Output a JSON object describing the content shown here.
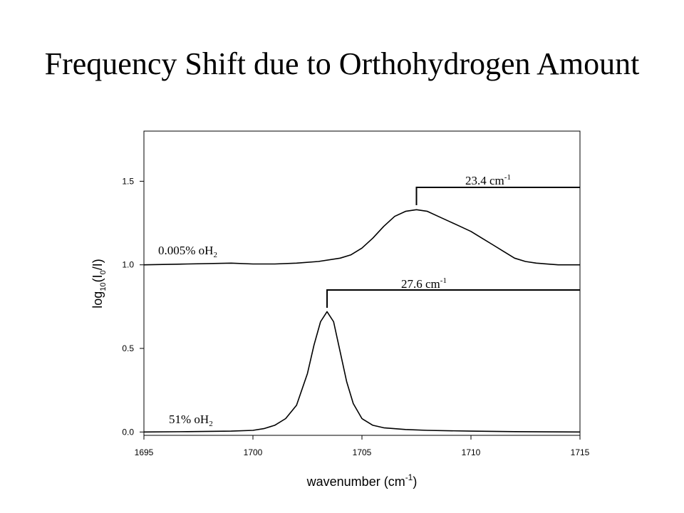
{
  "page": {
    "title": "Frequency Shift due to Orthohydrogen Amount"
  },
  "chart_data": {
    "type": "line",
    "title": "Frequency Shift due to Orthohydrogen Amount",
    "xlabel": {
      "main": "wavenumber (cm",
      "sup": "-1",
      "tail": ")"
    },
    "ylabel": {
      "p1": "log",
      "sub1": "10",
      "p2": "(I",
      "sub2": "0",
      "p3": "/I)"
    },
    "xlim": [
      1695,
      1715
    ],
    "ylim": [
      -0.02,
      1.8
    ],
    "xticks": [
      1695,
      1700,
      1705,
      1710,
      1715
    ],
    "yticks": [
      0.0,
      0.5,
      1.0,
      1.5
    ],
    "ytick_labels": [
      "0.0",
      "0.5",
      "1.0",
      "1.5"
    ],
    "grid": false,
    "series": [
      {
        "name": "0.005% oH2",
        "x": [
          1695,
          1697,
          1699,
          1700,
          1701,
          1702,
          1703,
          1704,
          1704.5,
          1705,
          1705.5,
          1706,
          1706.5,
          1707,
          1707.5,
          1708,
          1708.5,
          1709,
          1709.5,
          1710,
          1710.5,
          1711,
          1711.5,
          1712,
          1712.5,
          1713,
          1714,
          1715
        ],
        "y": [
          1.0,
          1.005,
          1.01,
          1.005,
          1.005,
          1.01,
          1.02,
          1.04,
          1.06,
          1.1,
          1.16,
          1.23,
          1.29,
          1.32,
          1.33,
          1.32,
          1.29,
          1.26,
          1.23,
          1.2,
          1.16,
          1.12,
          1.08,
          1.04,
          1.02,
          1.01,
          1.0,
          1.0
        ]
      },
      {
        "name": "51% oH2",
        "x": [
          1695,
          1697,
          1699,
          1700,
          1700.5,
          1701,
          1701.5,
          1702,
          1702.5,
          1702.8,
          1703.1,
          1703.4,
          1703.7,
          1704,
          1704.3,
          1704.6,
          1705,
          1705.5,
          1706,
          1707,
          1708,
          1710,
          1712,
          1715
        ],
        "y": [
          0.0,
          0.002,
          0.005,
          0.01,
          0.02,
          0.04,
          0.08,
          0.16,
          0.35,
          0.52,
          0.66,
          0.72,
          0.66,
          0.48,
          0.3,
          0.17,
          0.08,
          0.04,
          0.025,
          0.015,
          0.01,
          0.005,
          0.002,
          0.0
        ]
      }
    ],
    "annotations": {
      "label_top": {
        "main": "0.005% oH",
        "sub": "2"
      },
      "label_bottom": {
        "main": "51% oH",
        "sub": "2"
      },
      "shift_top": {
        "main": "23.4 cm",
        "sup": "-1"
      },
      "shift_bottom": {
        "main": "27.6 cm",
        "sup": "-1"
      }
    },
    "colors": {
      "line": "#000000",
      "axis": "#000000",
      "background": "#ffffff"
    }
  }
}
